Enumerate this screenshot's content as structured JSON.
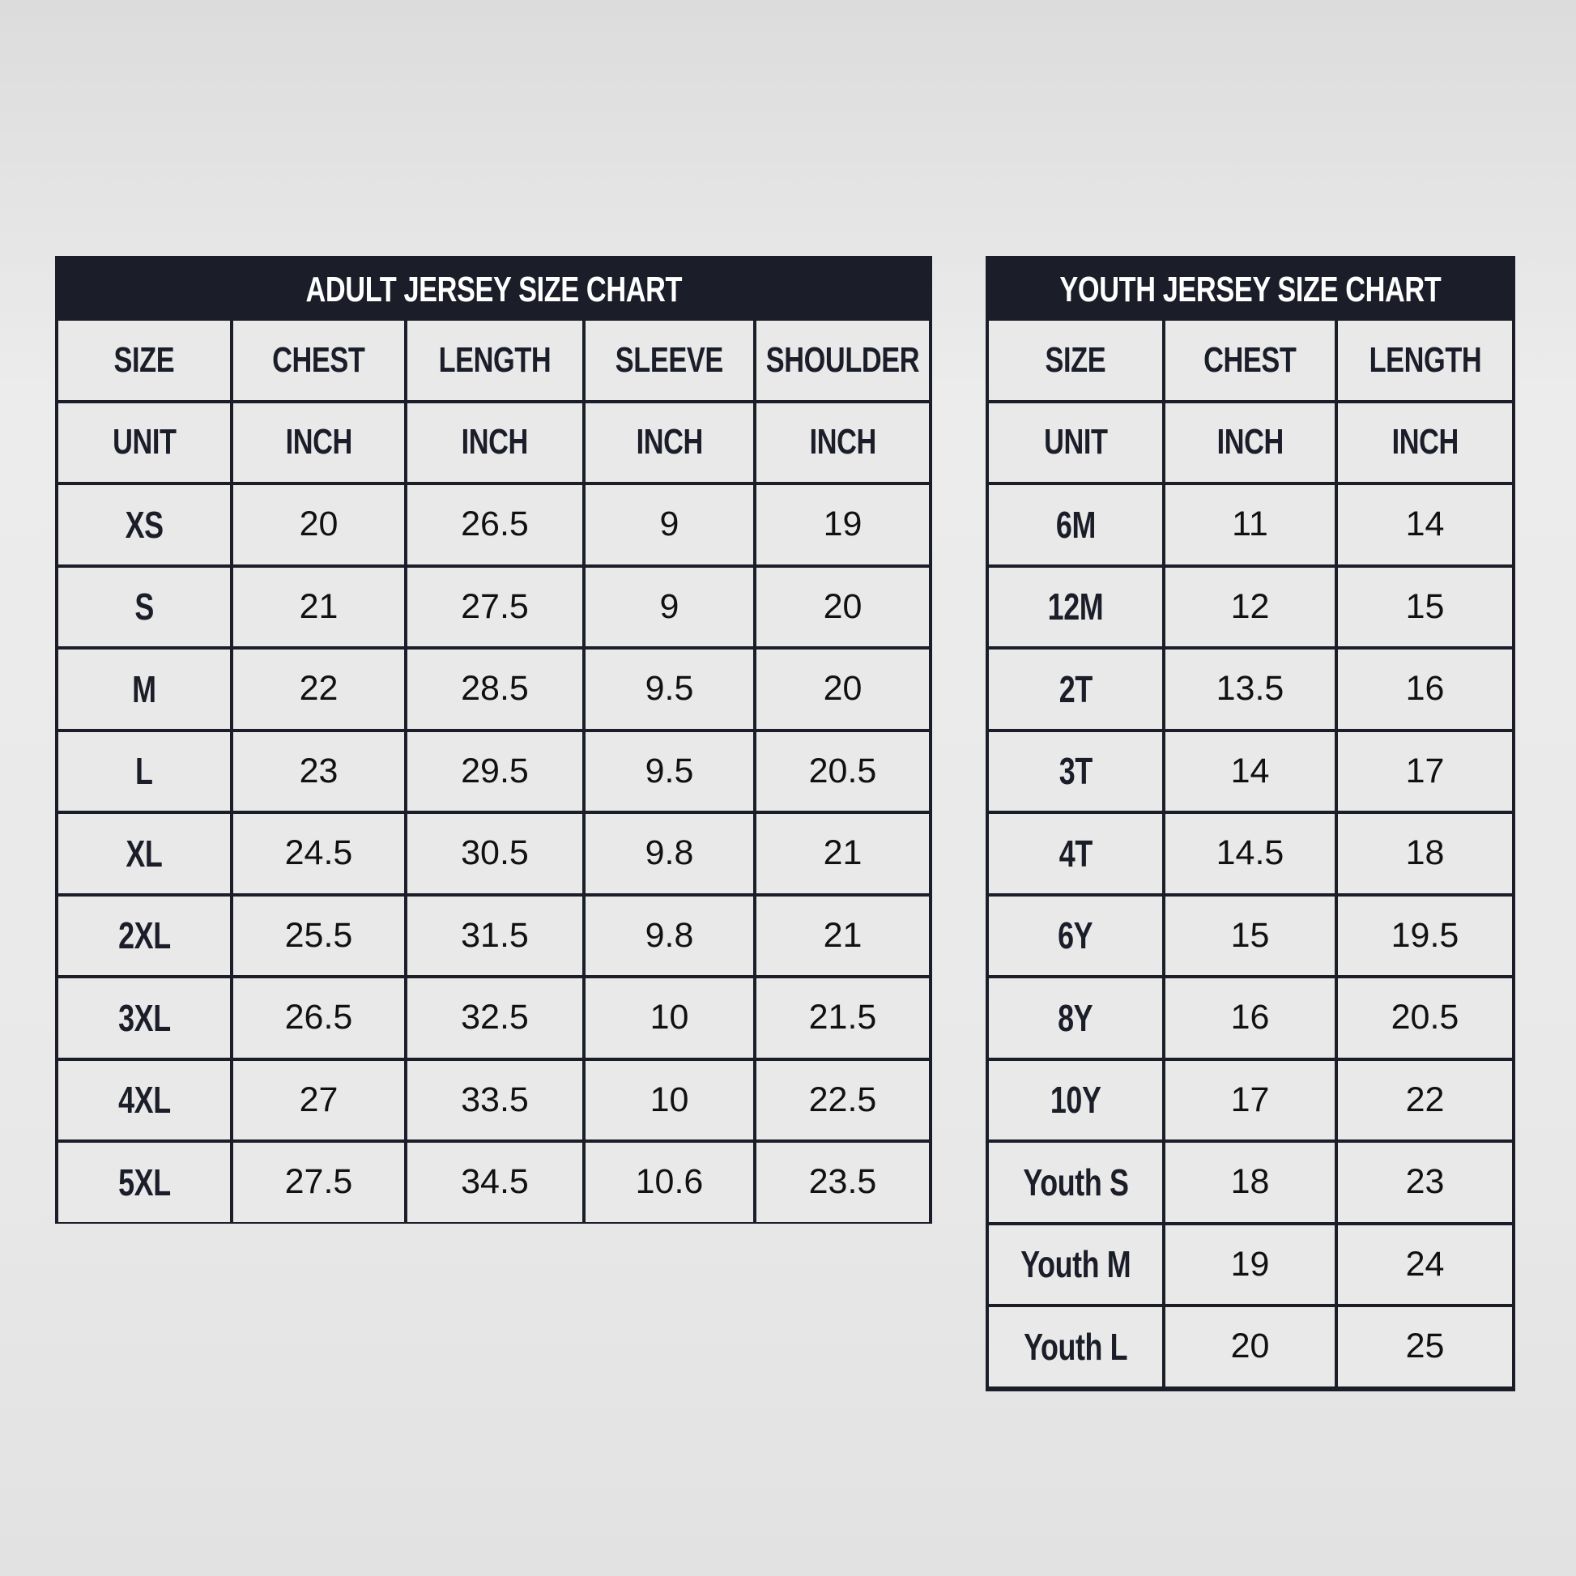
{
  "adult": {
    "title": "ADULT JERSEY SIZE CHART",
    "headers": [
      "SIZE",
      "CHEST",
      "LENGTH",
      "SLEEVE",
      "SHOULDER"
    ],
    "units": [
      "UNIT",
      "INCH",
      "INCH",
      "INCH",
      "INCH"
    ],
    "rows": [
      [
        "XS",
        "20",
        "26.5",
        "9",
        "19"
      ],
      [
        "S",
        "21",
        "27.5",
        "9",
        "20"
      ],
      [
        "M",
        "22",
        "28.5",
        "9.5",
        "20"
      ],
      [
        "L",
        "23",
        "29.5",
        "9.5",
        "20.5"
      ],
      [
        "XL",
        "24.5",
        "30.5",
        "9.8",
        "21"
      ],
      [
        "2XL",
        "25.5",
        "31.5",
        "9.8",
        "21"
      ],
      [
        "3XL",
        "26.5",
        "32.5",
        "10",
        "21.5"
      ],
      [
        "4XL",
        "27",
        "33.5",
        "10",
        "22.5"
      ],
      [
        "5XL",
        "27.5",
        "34.5",
        "10.6",
        "23.5"
      ]
    ]
  },
  "youth": {
    "title": "YOUTH JERSEY SIZE CHART",
    "headers": [
      "SIZE",
      "CHEST",
      "LENGTH"
    ],
    "units": [
      "UNIT",
      "INCH",
      "INCH"
    ],
    "rows": [
      [
        "6M",
        "11",
        "14"
      ],
      [
        "12M",
        "12",
        "15"
      ],
      [
        "2T",
        "13.5",
        "16"
      ],
      [
        "3T",
        "14",
        "17"
      ],
      [
        "4T",
        "14.5",
        "18"
      ],
      [
        "6Y",
        "15",
        "19.5"
      ],
      [
        "8Y",
        "16",
        "20.5"
      ],
      [
        "10Y",
        "17",
        "22"
      ],
      [
        "Youth S",
        "18",
        "23"
      ],
      [
        "Youth M",
        "19",
        "24"
      ],
      [
        "Youth L",
        "20",
        "25"
      ]
    ]
  },
  "colors": {
    "header_bg": "#1b1e29",
    "cell_bg": "#e9e9e9",
    "text": "#1b1e29"
  }
}
